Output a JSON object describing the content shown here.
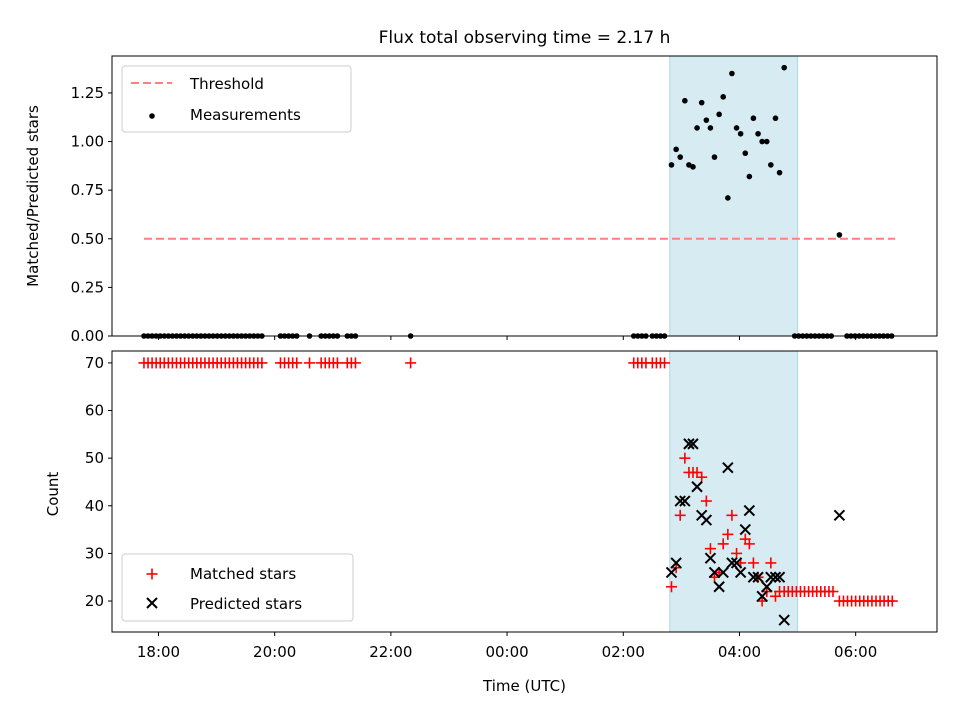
{
  "title": "Flux total observing time = 2.17 h",
  "colors": {
    "threshold": "#ff7f7f",
    "measurement": "#000000",
    "matched": "#ff0000",
    "predicted": "#000000",
    "span_fill": "#add8e6"
  },
  "chart_data": [
    {
      "type": "scatter",
      "ylabel": "Matched/Predicted stars",
      "ylim": [
        0,
        1.44
      ],
      "yticks": [
        0,
        0.25,
        0.5,
        0.75,
        1.0,
        1.25
      ],
      "ytick_labels": [
        "0.00",
        "0.25",
        "0.50",
        "0.75",
        "1.00",
        "1.25"
      ],
      "highlight_span_hours": [
        2.8,
        5.0
      ],
      "legend": {
        "position": "upper-left",
        "threshold_label": "Threshold",
        "measurements_label": "Measurements"
      },
      "threshold": {
        "name": "Threshold",
        "value": 0.5,
        "x_range_hours": [
          -6.25,
          6.68
        ]
      },
      "series": [
        {
          "name": "Measurements",
          "points": [
            [
              -6.25,
              0
            ],
            [
              -6.18,
              0
            ],
            [
              -6.11,
              0
            ],
            [
              -6.04,
              0
            ],
            [
              -5.97,
              0
            ],
            [
              -5.9,
              0
            ],
            [
              -5.83,
              0
            ],
            [
              -5.76,
              0
            ],
            [
              -5.69,
              0
            ],
            [
              -5.62,
              0
            ],
            [
              -5.55,
              0
            ],
            [
              -5.48,
              0
            ],
            [
              -5.41,
              0
            ],
            [
              -5.34,
              0
            ],
            [
              -5.27,
              0
            ],
            [
              -5.2,
              0
            ],
            [
              -5.13,
              0
            ],
            [
              -5.06,
              0
            ],
            [
              -4.99,
              0
            ],
            [
              -4.92,
              0
            ],
            [
              -4.85,
              0
            ],
            [
              -4.78,
              0
            ],
            [
              -4.71,
              0
            ],
            [
              -4.64,
              0
            ],
            [
              -4.57,
              0
            ],
            [
              -4.5,
              0
            ],
            [
              -4.43,
              0
            ],
            [
              -4.36,
              0
            ],
            [
              -4.29,
              0
            ],
            [
              -4.22,
              0
            ],
            [
              -3.9,
              0
            ],
            [
              -3.83,
              0
            ],
            [
              -3.76,
              0
            ],
            [
              -3.69,
              0
            ],
            [
              -3.62,
              0
            ],
            [
              -3.4,
              0
            ],
            [
              -3.2,
              0
            ],
            [
              -3.13,
              0
            ],
            [
              -3.06,
              0
            ],
            [
              -2.99,
              0
            ],
            [
              -2.92,
              0
            ],
            [
              -2.75,
              0
            ],
            [
              -2.68,
              0
            ],
            [
              -2.61,
              0
            ],
            [
              -1.66,
              0
            ],
            [
              2.18,
              0
            ],
            [
              2.25,
              0
            ],
            [
              2.32,
              0
            ],
            [
              2.39,
              0
            ],
            [
              2.5,
              0
            ],
            [
              2.57,
              0
            ],
            [
              2.64,
              0
            ],
            [
              2.71,
              0
            ],
            [
              2.83,
              0.88
            ],
            [
              2.91,
              0.96
            ],
            [
              2.98,
              0.92
            ],
            [
              3.06,
              1.21
            ],
            [
              3.13,
              0.88
            ],
            [
              3.2,
              0.87
            ],
            [
              3.27,
              1.07
            ],
            [
              3.35,
              1.2
            ],
            [
              3.43,
              1.11
            ],
            [
              3.5,
              1.07
            ],
            [
              3.57,
              0.92
            ],
            [
              3.65,
              1.14
            ],
            [
              3.72,
              1.23
            ],
            [
              3.8,
              0.71
            ],
            [
              3.87,
              1.35
            ],
            [
              3.95,
              1.07
            ],
            [
              4.02,
              1.04
            ],
            [
              4.1,
              0.94
            ],
            [
              4.17,
              0.82
            ],
            [
              4.24,
              1.12
            ],
            [
              4.32,
              1.04
            ],
            [
              4.39,
              1.0
            ],
            [
              4.47,
              1.0
            ],
            [
              4.54,
              0.88
            ],
            [
              4.62,
              1.12
            ],
            [
              4.69,
              0.84
            ],
            [
              4.77,
              1.38
            ],
            [
              4.95,
              0
            ],
            [
              5.02,
              0
            ],
            [
              5.09,
              0
            ],
            [
              5.16,
              0
            ],
            [
              5.23,
              0
            ],
            [
              5.3,
              0
            ],
            [
              5.37,
              0
            ],
            [
              5.44,
              0
            ],
            [
              5.51,
              0
            ],
            [
              5.58,
              0
            ],
            [
              5.72,
              0.52
            ],
            [
              5.85,
              0
            ],
            [
              5.92,
              0
            ],
            [
              5.99,
              0
            ],
            [
              6.06,
              0
            ],
            [
              6.13,
              0
            ],
            [
              6.2,
              0
            ],
            [
              6.27,
              0
            ],
            [
              6.34,
              0
            ],
            [
              6.41,
              0
            ],
            [
              6.48,
              0
            ],
            [
              6.55,
              0
            ],
            [
              6.62,
              0
            ]
          ]
        }
      ]
    },
    {
      "type": "scatter",
      "xlabel": "Time (UTC)",
      "ylabel": "Count",
      "xlim_hours": [
        -6.8,
        7.4
      ],
      "ylim": [
        13.5,
        72.5
      ],
      "xticks_hours": [
        -6,
        -4,
        -2,
        0,
        2,
        4,
        6
      ],
      "xtick_labels": [
        "18:00",
        "20:00",
        "22:00",
        "00:00",
        "02:00",
        "04:00",
        "06:00"
      ],
      "yticks": [
        20,
        30,
        40,
        50,
        60,
        70
      ],
      "ytick_labels": [
        "20",
        "30",
        "40",
        "50",
        "60",
        "70"
      ],
      "highlight_span_hours": [
        2.8,
        5.0
      ],
      "legend": {
        "position": "lower-left",
        "matched_label": "Matched stars",
        "predicted_label": "Predicted stars"
      },
      "series": [
        {
          "name": "Matched stars",
          "marker": "plus",
          "points": [
            [
              -6.25,
              70
            ],
            [
              -6.18,
              70
            ],
            [
              -6.11,
              70
            ],
            [
              -6.04,
              70
            ],
            [
              -5.97,
              70
            ],
            [
              -5.9,
              70
            ],
            [
              -5.83,
              70
            ],
            [
              -5.76,
              70
            ],
            [
              -5.69,
              70
            ],
            [
              -5.62,
              70
            ],
            [
              -5.55,
              70
            ],
            [
              -5.48,
              70
            ],
            [
              -5.41,
              70
            ],
            [
              -5.34,
              70
            ],
            [
              -5.27,
              70
            ],
            [
              -5.2,
              70
            ],
            [
              -5.13,
              70
            ],
            [
              -5.06,
              70
            ],
            [
              -4.99,
              70
            ],
            [
              -4.92,
              70
            ],
            [
              -4.85,
              70
            ],
            [
              -4.78,
              70
            ],
            [
              -4.71,
              70
            ],
            [
              -4.64,
              70
            ],
            [
              -4.57,
              70
            ],
            [
              -4.5,
              70
            ],
            [
              -4.43,
              70
            ],
            [
              -4.36,
              70
            ],
            [
              -4.29,
              70
            ],
            [
              -4.22,
              70
            ],
            [
              -3.9,
              70
            ],
            [
              -3.83,
              70
            ],
            [
              -3.76,
              70
            ],
            [
              -3.69,
              70
            ],
            [
              -3.62,
              70
            ],
            [
              -3.4,
              70
            ],
            [
              -3.2,
              70
            ],
            [
              -3.13,
              70
            ],
            [
              -3.06,
              70
            ],
            [
              -2.99,
              70
            ],
            [
              -2.92,
              70
            ],
            [
              -2.75,
              70
            ],
            [
              -2.68,
              70
            ],
            [
              -2.61,
              70
            ],
            [
              -1.66,
              70
            ],
            [
              2.18,
              70
            ],
            [
              2.25,
              70
            ],
            [
              2.32,
              70
            ],
            [
              2.39,
              70
            ],
            [
              2.5,
              70
            ],
            [
              2.57,
              70
            ],
            [
              2.64,
              70
            ],
            [
              2.71,
              70
            ],
            [
              2.83,
              23
            ],
            [
              2.91,
              27
            ],
            [
              2.98,
              38
            ],
            [
              3.06,
              50
            ],
            [
              3.13,
              47
            ],
            [
              3.2,
              47
            ],
            [
              3.27,
              47
            ],
            [
              3.35,
              46
            ],
            [
              3.43,
              41
            ],
            [
              3.5,
              31
            ],
            [
              3.57,
              25
            ],
            [
              3.65,
              26
            ],
            [
              3.72,
              32
            ],
            [
              3.8,
              34
            ],
            [
              3.87,
              38
            ],
            [
              3.95,
              30
            ],
            [
              4.02,
              28
            ],
            [
              4.1,
              33
            ],
            [
              4.17,
              32
            ],
            [
              4.24,
              28
            ],
            [
              4.32,
              25
            ],
            [
              4.39,
              20
            ],
            [
              4.47,
              22
            ],
            [
              4.54,
              28
            ],
            [
              4.62,
              21
            ],
            [
              4.69,
              22
            ],
            [
              4.77,
              22
            ],
            [
              4.84,
              22
            ],
            [
              4.91,
              22
            ],
            [
              4.98,
              22
            ],
            [
              5.05,
              22
            ],
            [
              5.12,
              22
            ],
            [
              5.19,
              22
            ],
            [
              5.26,
              22
            ],
            [
              5.33,
              22
            ],
            [
              5.4,
              22
            ],
            [
              5.47,
              22
            ],
            [
              5.54,
              22
            ],
            [
              5.61,
              22
            ],
            [
              5.72,
              20
            ],
            [
              5.79,
              20
            ],
            [
              5.86,
              20
            ],
            [
              5.93,
              20
            ],
            [
              6.0,
              20
            ],
            [
              6.07,
              20
            ],
            [
              6.14,
              20
            ],
            [
              6.21,
              20
            ],
            [
              6.28,
              20
            ],
            [
              6.35,
              20
            ],
            [
              6.42,
              20
            ],
            [
              6.49,
              20
            ],
            [
              6.56,
              20
            ],
            [
              6.63,
              20
            ]
          ]
        },
        {
          "name": "Predicted stars",
          "marker": "x",
          "points": [
            [
              2.83,
              26
            ],
            [
              2.91,
              28
            ],
            [
              2.98,
              41
            ],
            [
              3.06,
              41
            ],
            [
              3.13,
              53
            ],
            [
              3.2,
              53
            ],
            [
              3.27,
              44
            ],
            [
              3.35,
              38
            ],
            [
              3.43,
              37
            ],
            [
              3.5,
              29
            ],
            [
              3.57,
              26
            ],
            [
              3.65,
              23
            ],
            [
              3.72,
              26
            ],
            [
              3.8,
              48
            ],
            [
              3.87,
              28
            ],
            [
              3.95,
              28
            ],
            [
              4.02,
              26
            ],
            [
              4.1,
              35
            ],
            [
              4.17,
              39
            ],
            [
              4.24,
              25
            ],
            [
              4.32,
              25
            ],
            [
              4.39,
              21
            ],
            [
              4.47,
              23
            ],
            [
              4.54,
              25
            ],
            [
              4.62,
              25
            ],
            [
              4.69,
              25
            ],
            [
              4.77,
              16
            ],
            [
              5.72,
              38
            ]
          ]
        }
      ]
    }
  ]
}
